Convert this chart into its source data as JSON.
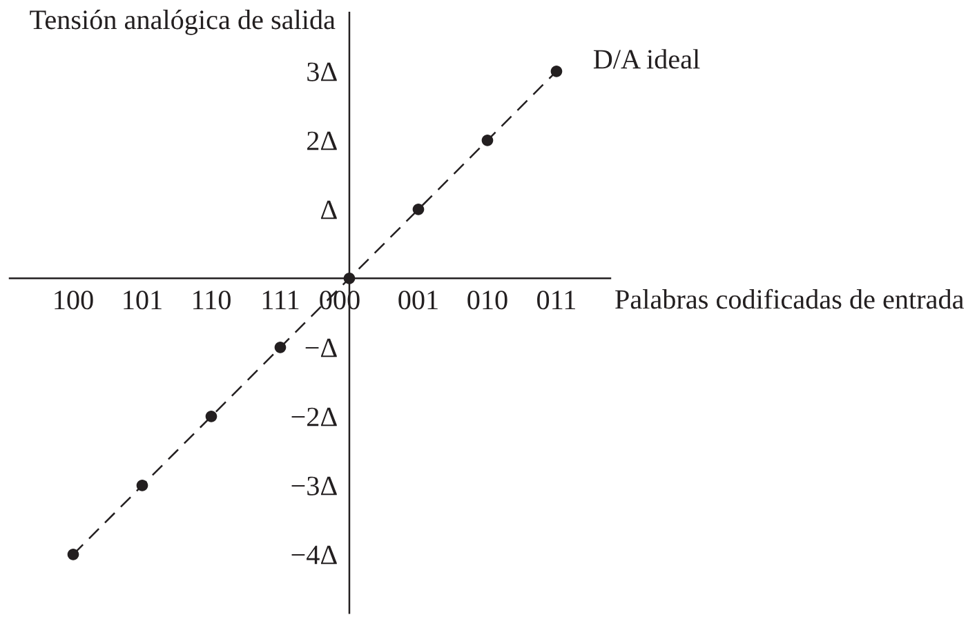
{
  "chart_data": {
    "type": "line",
    "xlabel": "Palabras codificadas de entrada",
    "ylabel": "Tensión analógica de salida",
    "categories": [
      "100",
      "101",
      "110",
      "111",
      "000",
      "001",
      "010",
      "011"
    ],
    "series": [
      {
        "name": "D/A ideal",
        "color": "#231f20",
        "values": [
          -4,
          -3,
          -2,
          -1,
          0,
          1,
          2,
          3
        ]
      }
    ],
    "marker": "circle",
    "line_style": "dashed",
    "ylim": [
      -4.85,
      3.85
    ],
    "yticks": [
      {
        "value": -4,
        "label": "−4Δ"
      },
      {
        "value": -3,
        "label": "−3Δ"
      },
      {
        "value": -2,
        "label": "−2Δ"
      },
      {
        "value": -1,
        "label": "−Δ"
      },
      {
        "value": 1,
        "label": "Δ"
      },
      {
        "value": 2,
        "label": "2Δ"
      },
      {
        "value": 3,
        "label": "3Δ"
      }
    ]
  }
}
